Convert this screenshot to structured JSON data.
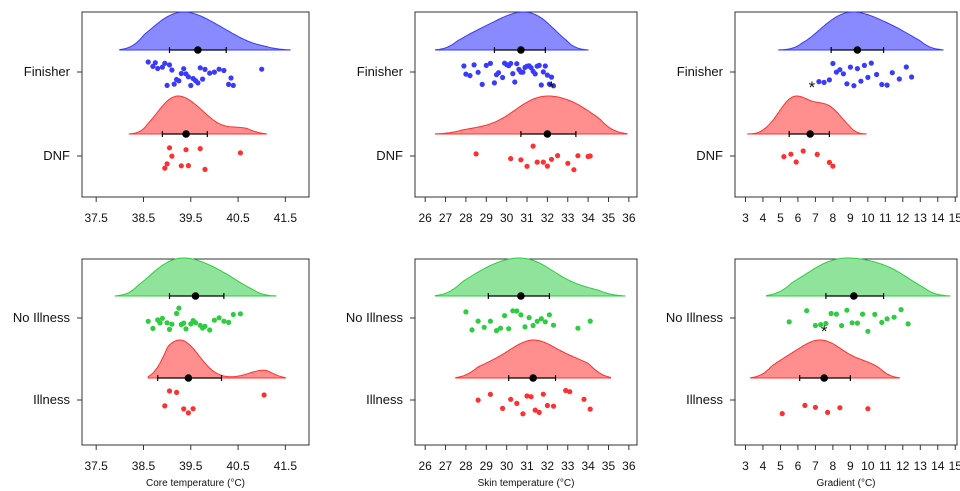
{
  "colors": {
    "blue": "#3a3aff",
    "red": "#ff3030",
    "green": "#2ecc40",
    "frame": "#333333"
  },
  "chart_data": [
    {
      "type": "raincloud",
      "xlabel": "",
      "xlim": [
        37.2,
        42.0
      ],
      "ticks": [
        "37.5",
        "38.5",
        "39.5",
        "40.5",
        "41.5"
      ],
      "tick_values": [
        37.5,
        38.5,
        39.5,
        40.5,
        41.5
      ],
      "groups": [
        {
          "name": "Finisher",
          "color": "blue",
          "mean": 39.65,
          "ci": [
            39.05,
            40.25
          ],
          "range": [
            38.0,
            41.6
          ],
          "peak": 39.6,
          "significant": false,
          "points": [
            38.6,
            38.7,
            38.75,
            38.8,
            38.9,
            38.95,
            39.0,
            39.05,
            39.1,
            39.15,
            39.2,
            39.25,
            39.3,
            39.35,
            39.4,
            39.45,
            39.5,
            39.55,
            39.6,
            39.65,
            39.7,
            39.75,
            39.8,
            39.9,
            40.0,
            40.1,
            40.2,
            40.3,
            40.35,
            40.4,
            41.0
          ]
        },
        {
          "name": "DNF",
          "color": "red",
          "mean": 39.4,
          "ci": [
            38.9,
            39.85
          ],
          "range": [
            38.2,
            41.1
          ],
          "peak": 39.25,
          "significant": false,
          "points": [
            38.95,
            39.0,
            39.05,
            39.1,
            39.3,
            39.4,
            39.45,
            39.7,
            39.8,
            40.55
          ]
        }
      ]
    },
    {
      "type": "raincloud",
      "xlabel": "",
      "xlim": [
        25.5,
        36.4
      ],
      "ticks": [
        "26",
        "27",
        "28",
        "29",
        "30",
        "31",
        "32",
        "33",
        "34",
        "35",
        "36"
      ],
      "tick_values": [
        26,
        27,
        28,
        29,
        30,
        31,
        32,
        33,
        34,
        35,
        36
      ],
      "groups": [
        {
          "name": "Finisher",
          "color": "blue",
          "mean": 30.7,
          "ci": [
            29.4,
            31.9
          ],
          "range": [
            26.5,
            34.0
          ],
          "peak": 31.2,
          "significant": false,
          "points": [
            27.9,
            28.0,
            28.2,
            28.4,
            28.6,
            28.8,
            29.0,
            29.2,
            29.4,
            29.5,
            29.6,
            29.8,
            29.9,
            30.0,
            30.1,
            30.2,
            30.3,
            30.4,
            30.5,
            30.6,
            30.7,
            30.8,
            30.9,
            31.0,
            31.1,
            31.2,
            31.3,
            31.4,
            31.5,
            31.6,
            31.7,
            31.8,
            31.9,
            32.0,
            32.1,
            32.2,
            32.3
          ]
        },
        {
          "name": "DNF",
          "color": "red",
          "mean": 32.0,
          "ci": [
            30.7,
            33.4
          ],
          "range": [
            26.5,
            35.9
          ],
          "peak": 32.2,
          "significant": true,
          "points": [
            28.5,
            30.2,
            30.7,
            31.0,
            31.3,
            31.5,
            31.8,
            32.0,
            32.2,
            32.5,
            33.0,
            33.3,
            33.5,
            34.0,
            34.1
          ]
        }
      ]
    },
    {
      "type": "raincloud",
      "xlabel": "",
      "xlim": [
        2.4,
        15.1
      ],
      "ticks": [
        "3",
        "4",
        "5",
        "6",
        "7",
        "8",
        "9",
        "10",
        "11",
        "12",
        "13",
        "14",
        "15"
      ],
      "tick_values": [
        3,
        4,
        5,
        6,
        7,
        8,
        9,
        10,
        11,
        12,
        13,
        14,
        15
      ],
      "groups": [
        {
          "name": "Finisher",
          "color": "blue",
          "mean": 9.4,
          "ci": [
            7.9,
            10.9
          ],
          "range": [
            4.9,
            14.3
          ],
          "peak": 8.7,
          "significant": false,
          "points": [
            7.2,
            7.5,
            7.8,
            8.0,
            8.2,
            8.4,
            8.6,
            8.8,
            9.0,
            9.2,
            9.4,
            9.6,
            9.8,
            10.0,
            10.2,
            10.5,
            10.8,
            11.1,
            11.4,
            11.8,
            12.2,
            12.5
          ]
        },
        {
          "name": "DNF",
          "color": "red",
          "mean": 6.7,
          "ci": [
            5.5,
            7.8
          ],
          "range": [
            3.1,
            9.9
          ],
          "peak": 6.8,
          "significant": true,
          "points": [
            5.2,
            5.6,
            5.9,
            6.3,
            7.1,
            7.8,
            8.0
          ]
        }
      ]
    },
    {
      "type": "raincloud",
      "xlabel": "Core temperature (°C)",
      "xlim": [
        37.2,
        42.0
      ],
      "ticks": [
        "37.5",
        "38.5",
        "39.5",
        "40.5",
        "41.5"
      ],
      "tick_values": [
        37.5,
        38.5,
        39.5,
        40.5,
        41.5
      ],
      "groups": [
        {
          "name": "No Illness",
          "color": "green",
          "mean": 39.6,
          "ci": [
            39.05,
            40.2
          ],
          "range": [
            37.9,
            41.3
          ],
          "peak": 39.5,
          "significant": false,
          "points": [
            38.6,
            38.7,
            38.8,
            38.85,
            38.9,
            39.0,
            39.05,
            39.1,
            39.2,
            39.25,
            39.3,
            39.35,
            39.4,
            39.5,
            39.55,
            39.6,
            39.7,
            39.75,
            39.8,
            39.9,
            40.0,
            40.1,
            40.2,
            40.3,
            40.4,
            40.55
          ]
        },
        {
          "name": "Illness",
          "color": "red",
          "mean": 39.45,
          "ci": [
            38.8,
            40.15
          ],
          "range": [
            38.6,
            41.5
          ],
          "peak": 39.35,
          "significant": false,
          "points": [
            38.95,
            39.05,
            39.2,
            39.35,
            39.45,
            39.55,
            41.05
          ]
        }
      ]
    },
    {
      "type": "raincloud",
      "xlabel": "Skin temperature (°C)",
      "xlim": [
        25.5,
        36.4
      ],
      "ticks": [
        "26",
        "27",
        "28",
        "29",
        "30",
        "31",
        "32",
        "33",
        "34",
        "35",
        "36"
      ],
      "tick_values": [
        26,
        27,
        28,
        29,
        30,
        31,
        32,
        33,
        34,
        35,
        36
      ],
      "groups": [
        {
          "name": "No Illness",
          "color": "green",
          "mean": 30.7,
          "ci": [
            29.1,
            32.1
          ],
          "range": [
            26.5,
            35.8
          ],
          "peak": 31.2,
          "significant": false,
          "points": [
            28.0,
            28.3,
            28.6,
            28.9,
            29.2,
            29.5,
            29.7,
            29.9,
            30.1,
            30.3,
            30.5,
            30.7,
            30.9,
            31.1,
            31.3,
            31.5,
            31.7,
            31.9,
            32.1,
            32.3,
            33.5,
            34.1
          ]
        },
        {
          "name": "Illness",
          "color": "red",
          "mean": 31.3,
          "ci": [
            30.1,
            32.4
          ],
          "range": [
            27.5,
            35.1
          ],
          "peak": 31.3,
          "significant": false,
          "points": [
            28.6,
            29.2,
            29.8,
            30.2,
            30.5,
            30.8,
            31.0,
            31.2,
            31.4,
            31.6,
            31.8,
            32.0,
            32.3,
            32.9,
            33.1,
            33.8,
            34.1
          ]
        }
      ]
    },
    {
      "type": "raincloud",
      "xlabel": "Gradient (°C)",
      "xlim": [
        2.4,
        15.1
      ],
      "ticks": [
        "3",
        "4",
        "5",
        "6",
        "7",
        "8",
        "9",
        "10",
        "11",
        "12",
        "13",
        "14",
        "15"
      ],
      "tick_values": [
        3,
        4,
        5,
        6,
        7,
        8,
        9,
        10,
        11,
        12,
        13,
        14,
        15
      ],
      "groups": [
        {
          "name": "No Illness",
          "color": "green",
          "mean": 9.2,
          "ci": [
            7.6,
            10.9
          ],
          "range": [
            4.2,
            14.7
          ],
          "peak": 8.8,
          "significant": false,
          "points": [
            5.5,
            6.5,
            7.0,
            7.3,
            7.6,
            7.9,
            8.2,
            8.5,
            8.8,
            9.1,
            9.4,
            9.7,
            10.0,
            10.4,
            10.8,
            11.1,
            11.5,
            11.9,
            12.3
          ]
        },
        {
          "name": "Illness",
          "color": "red",
          "mean": 7.5,
          "ci": [
            6.1,
            9.0
          ],
          "range": [
            3.3,
            11.8
          ],
          "peak": 7.5,
          "significant": true,
          "points": [
            5.1,
            6.4,
            7.0,
            7.7,
            8.4,
            10.0
          ]
        }
      ]
    }
  ]
}
